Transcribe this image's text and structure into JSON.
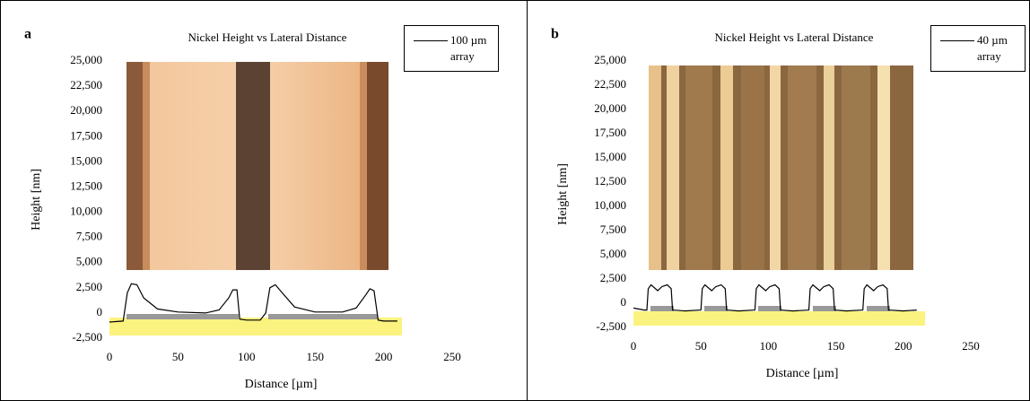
{
  "chart_data": [
    {
      "type": "line",
      "panel_label": "a",
      "title": "Nickel Height vs Lateral Distance",
      "x_label": "Distance [µm]",
      "y_label": "Height [nm]",
      "x": [
        0,
        10,
        13,
        16,
        20,
        25,
        35,
        50,
        70,
        80,
        87,
        90,
        93,
        95,
        100,
        110,
        114,
        117,
        121,
        126,
        135,
        150,
        170,
        180,
        187,
        190,
        193,
        196,
        200,
        210
      ],
      "series": [
        {
          "name": "100 µm array",
          "color": "#000000",
          "values": [
            -900,
            -800,
            2000,
            2900,
            2800,
            1500,
            400,
            100,
            0,
            300,
            1500,
            2300,
            2300,
            -600,
            -700,
            -700,
            0,
            2500,
            2800,
            2000,
            600,
            100,
            100,
            500,
            1800,
            2400,
            2200,
            -700,
            -800,
            -800
          ]
        }
      ],
      "xlim": [
        0,
        250
      ],
      "xticks": [
        0,
        50,
        100,
        150,
        200,
        250
      ],
      "ylim": [
        -2500,
        25000
      ],
      "yticks": [
        {
          "value": -2500,
          "label": "-2,500"
        },
        0,
        {
          "value": 2500,
          "label": "2,500"
        },
        {
          "value": 5000,
          "label": "5,000"
        },
        {
          "value": 7500,
          "label": "7,500"
        },
        {
          "value": 10000,
          "label": "10,000"
        },
        {
          "value": 12500,
          "label": "12,500"
        },
        {
          "value": 15000,
          "label": "15,000"
        },
        {
          "value": 17500,
          "label": "17,500"
        },
        {
          "value": 20000,
          "label": "20,000"
        },
        {
          "value": 22500,
          "label": "22,500"
        },
        {
          "value": 25000,
          "label": "25,000"
        }
      ]
    },
    {
      "type": "line",
      "panel_label": "b",
      "title": "Nickel Height vs Lateral Distance",
      "x_label": "Distance [µm]",
      "y_label": "Height [nm]",
      "x": [
        0,
        8,
        10,
        11,
        13,
        18,
        21,
        25,
        28,
        29,
        38,
        50,
        51,
        53,
        58,
        61,
        65,
        68,
        69,
        78,
        90,
        91,
        93,
        98,
        101,
        105,
        108,
        109,
        118,
        130,
        131,
        133,
        138,
        141,
        145,
        148,
        149,
        158,
        170,
        171,
        173,
        178,
        181,
        185,
        188,
        189,
        200,
        210
      ],
      "series": [
        {
          "name": "40 µm array",
          "color": "#000000",
          "values": [
            -500,
            -700,
            -700,
            1500,
            1900,
            1300,
            1700,
            1900,
            1500,
            -700,
            -800,
            -700,
            1500,
            1900,
            1300,
            1700,
            1900,
            1500,
            -700,
            -800,
            -700,
            1500,
            1900,
            1300,
            1700,
            1900,
            1500,
            -700,
            -800,
            -700,
            1500,
            1900,
            1300,
            1700,
            1900,
            1500,
            -700,
            -800,
            -700,
            1500,
            1900,
            1300,
            1700,
            1900,
            1500,
            -700,
            -800,
            -700
          ]
        }
      ],
      "xlim": [
        0,
        250
      ],
      "xticks": [
        0,
        50,
        100,
        150,
        200,
        250
      ],
      "ylim": [
        -2500,
        25000
      ],
      "yticks": [
        {
          "value": -2500,
          "label": "-2,500"
        },
        0,
        {
          "value": 2500,
          "label": "2,500"
        },
        {
          "value": 5000,
          "label": "5,000"
        },
        {
          "value": 7500,
          "label": "7,500"
        },
        {
          "value": 10000,
          "label": "10,000"
        },
        {
          "value": 12500,
          "label": "12,500"
        },
        {
          "value": 15000,
          "label": "15,000"
        },
        {
          "value": 17500,
          "label": "17,500"
        },
        {
          "value": 20000,
          "label": "20,000"
        },
        {
          "value": 22500,
          "label": "22,500"
        },
        {
          "value": 25000,
          "label": "25,000"
        }
      ]
    }
  ]
}
